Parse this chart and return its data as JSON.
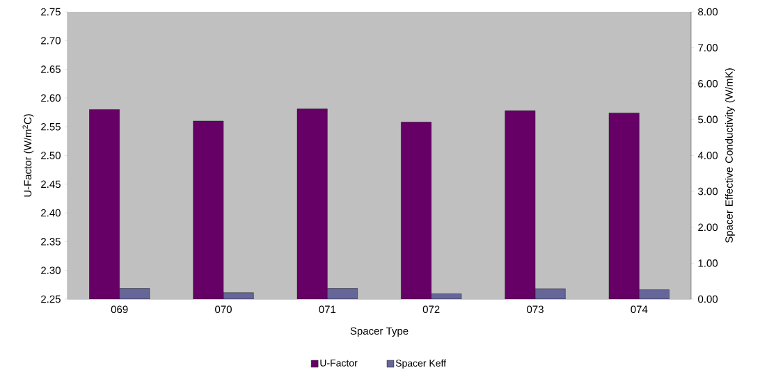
{
  "chart_data": {
    "type": "bar",
    "xlabel": "Spacer Type",
    "ylabel": "U-Factor (W/m$^{2}$C)",
    "y2label": "Spacer Effective Conductivity (W/mK)",
    "categories": [
      "069",
      "070",
      "071",
      "072",
      "073",
      "074"
    ],
    "series": [
      {
        "name": "U-Factor",
        "color": "#660066",
        "values": [
          2.58,
          2.56,
          2.581,
          2.558,
          2.578,
          2.574
        ]
      },
      {
        "name": "Spacer Keff",
        "color": "#666699",
        "axis": "y2",
        "values": [
          0.3,
          0.18,
          0.3,
          0.15,
          0.29,
          0.26
        ]
      }
    ],
    "ylim": [
      2.25,
      2.75
    ],
    "yticks": [
      {
        "value": 2.25,
        "label": "2.25"
      },
      {
        "value": 2.3,
        "label": "2.30"
      },
      {
        "value": 2.35,
        "label": "2.35"
      },
      {
        "value": 2.4,
        "label": "2.40"
      },
      {
        "value": 2.45,
        "label": "2.45"
      },
      {
        "value": 2.5,
        "label": "2.50"
      },
      {
        "value": 2.55,
        "label": "2.55"
      },
      {
        "value": 2.6,
        "label": "2.60"
      },
      {
        "value": 2.65,
        "label": "2.65"
      },
      {
        "value": 2.7,
        "label": "2.70"
      },
      {
        "value": 2.75,
        "label": "2.75"
      }
    ],
    "y2lim": [
      0,
      8
    ],
    "y2ticks": [
      {
        "value": 0,
        "label": "0.00"
      },
      {
        "value": 1,
        "label": "1.00"
      },
      {
        "value": 2,
        "label": "2.00"
      },
      {
        "value": 3,
        "label": "3.00"
      },
      {
        "value": 4,
        "label": "4.00"
      },
      {
        "value": 5,
        "label": "5.00"
      },
      {
        "value": 6,
        "label": "6.00"
      },
      {
        "value": 7,
        "label": "7.00"
      },
      {
        "value": 8,
        "label": "8.00"
      }
    ],
    "legend": "bottom",
    "grid": false
  }
}
